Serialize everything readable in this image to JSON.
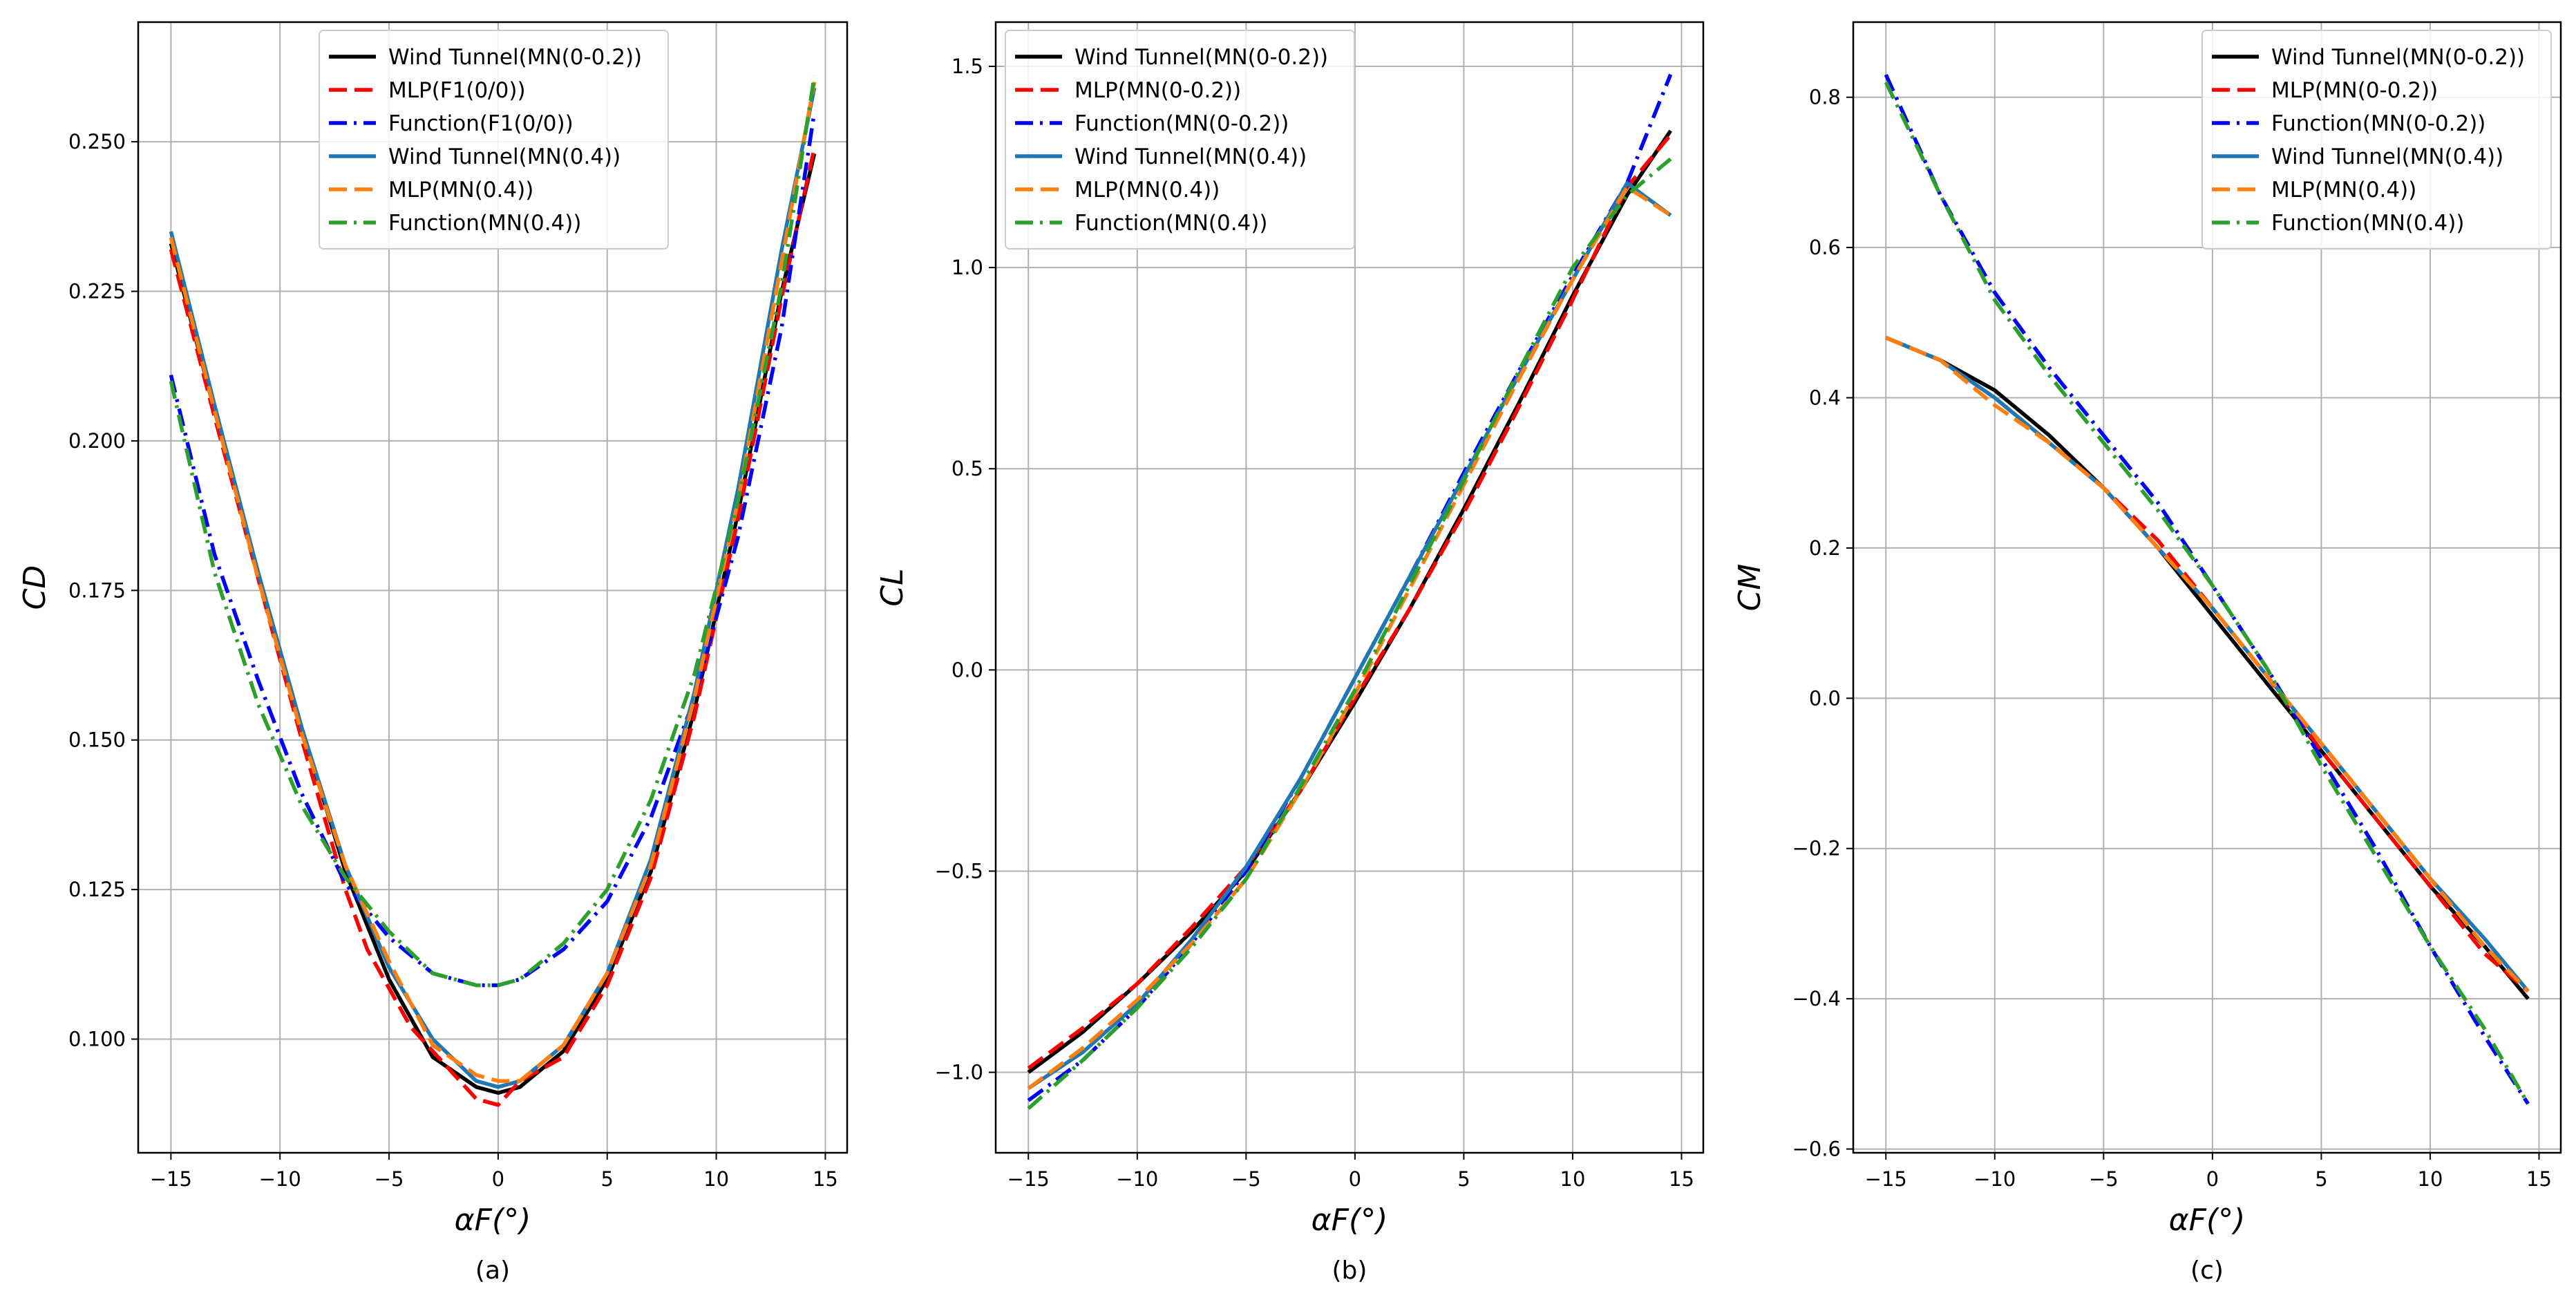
{
  "colors": {
    "Wind Tunnel(MN(0-0.2))": "#000000",
    "red_mlp": "#ff0000",
    "blue_function": "#0000ff",
    "Wind Tunnel(MN(0.4))": "#1f77b4",
    "orange_mlp": "#ff7f0e",
    "green_function": "#2ca02c"
  },
  "chart_data": [
    {
      "type": "line",
      "caption": "(a)",
      "xlabel": "αF(°)",
      "ylabel": "CD",
      "xlim": [
        -16.5,
        16
      ],
      "ylim": [
        0.081,
        0.27
      ],
      "xticks": [
        -15,
        -10,
        -5,
        0,
        5,
        10,
        15
      ],
      "yticks": [
        0.1,
        0.125,
        0.15,
        0.175,
        0.2,
        0.225,
        0.25
      ],
      "ytick_labels": [
        "0.100",
        "0.125",
        "0.150",
        "0.175",
        "0.200",
        "0.225",
        "0.250"
      ],
      "legend": "top-center",
      "series": [
        {
          "name": "Wind Tunnel(MN(0-0.2))",
          "style": "solid",
          "color": "#000000",
          "x": [
            -15,
            -13,
            -11,
            -9,
            -7,
            -5,
            -3,
            -1,
            0,
            1,
            3,
            5,
            7,
            9,
            11,
            13,
            14.5
          ],
          "y": [
            0.233,
            0.205,
            0.178,
            0.152,
            0.128,
            0.11,
            0.097,
            0.092,
            0.091,
            0.092,
            0.098,
            0.11,
            0.128,
            0.155,
            0.188,
            0.225,
            0.248
          ]
        },
        {
          "name": "MLP(F1(0/0))",
          "style": "dashed",
          "color": "#ff0000",
          "x": [
            -15,
            -13,
            -11,
            -9,
            -7,
            -6,
            -4,
            -2,
            -1,
            0,
            1,
            3,
            5,
            7,
            9,
            11,
            13,
            14.5
          ],
          "y": [
            0.232,
            0.204,
            0.177,
            0.15,
            0.125,
            0.115,
            0.102,
            0.094,
            0.09,
            0.089,
            0.093,
            0.097,
            0.109,
            0.127,
            0.154,
            0.187,
            0.224,
            0.249
          ]
        },
        {
          "name": "Function(F1(0/0))",
          "style": "dashdot",
          "color": "#0000ff",
          "x": [
            -15,
            -13,
            -11,
            -9,
            -7,
            -5,
            -3,
            -1,
            0,
            1,
            3,
            5,
            7,
            9,
            11,
            13,
            14.5
          ],
          "y": [
            0.211,
            0.181,
            0.16,
            0.141,
            0.126,
            0.117,
            0.111,
            0.109,
            0.109,
            0.11,
            0.115,
            0.123,
            0.137,
            0.157,
            0.184,
            0.219,
            0.255
          ]
        },
        {
          "name": "Wind Tunnel(MN(0.4))",
          "style": "solid",
          "color": "#1f77b4",
          "x": [
            -15,
            -13,
            -11,
            -9,
            -7,
            -5,
            -3,
            -1,
            0,
            1,
            3,
            5,
            7,
            9,
            11,
            13,
            14.5
          ],
          "y": [
            0.235,
            0.206,
            0.178,
            0.152,
            0.129,
            0.112,
            0.1,
            0.093,
            0.092,
            0.093,
            0.099,
            0.111,
            0.13,
            0.158,
            0.192,
            0.232,
            0.259
          ]
        },
        {
          "name": "MLP(MN(0.4))",
          "style": "dashed",
          "color": "#ff7f0e",
          "x": [
            -15,
            -13,
            -11,
            -9,
            -7,
            -5,
            -3,
            -1,
            0,
            1,
            3,
            5,
            7,
            9,
            11,
            13,
            14.5
          ],
          "y": [
            0.234,
            0.205,
            0.177,
            0.151,
            0.129,
            0.113,
            0.099,
            0.094,
            0.093,
            0.093,
            0.099,
            0.111,
            0.129,
            0.157,
            0.19,
            0.23,
            0.26
          ]
        },
        {
          "name": "Function(MN(0.4))",
          "style": "dashdot",
          "color": "#2ca02c",
          "x": [
            -15,
            -13,
            -11,
            -9,
            -7,
            -5,
            -3,
            -1,
            0,
            1,
            3,
            5,
            7,
            9,
            11,
            13,
            14.5
          ],
          "y": [
            0.21,
            0.178,
            0.156,
            0.139,
            0.127,
            0.118,
            0.111,
            0.109,
            0.109,
            0.11,
            0.116,
            0.125,
            0.14,
            0.161,
            0.19,
            0.226,
            0.261
          ]
        }
      ]
    },
    {
      "type": "line",
      "caption": "(b)",
      "xlabel": "αF(°)",
      "ylabel": "CL",
      "xlim": [
        -16.5,
        16
      ],
      "ylim": [
        -1.2,
        1.61
      ],
      "xticks": [
        -15,
        -10,
        -5,
        0,
        5,
        10,
        15
      ],
      "yticks": [
        -1.0,
        -0.5,
        0.0,
        0.5,
        1.0,
        1.5
      ],
      "ytick_labels": [
        "−1.0",
        "−0.5",
        "0.0",
        "0.5",
        "1.0",
        "1.5"
      ],
      "legend": "top-left",
      "series": [
        {
          "name": "Wind Tunnel(MN(0-0.2))",
          "style": "solid",
          "color": "#000000",
          "x": [
            -15,
            -12.5,
            -10,
            -7.5,
            -5,
            -2.5,
            0,
            2.5,
            5,
            7.5,
            10,
            12.5,
            14.5
          ],
          "y": [
            -1.0,
            -0.9,
            -0.78,
            -0.65,
            -0.5,
            -0.3,
            -0.08,
            0.15,
            0.4,
            0.66,
            0.93,
            1.18,
            1.34
          ]
        },
        {
          "name": "MLP(MN(0-0.2))",
          "style": "dashed",
          "color": "#ff0000",
          "x": [
            -15,
            -12.5,
            -10,
            -7.5,
            -5,
            -2.5,
            0,
            2.5,
            5,
            7.5,
            10,
            12.5,
            14.5
          ],
          "y": [
            -0.99,
            -0.89,
            -0.78,
            -0.64,
            -0.49,
            -0.3,
            -0.07,
            0.15,
            0.39,
            0.65,
            0.92,
            1.2,
            1.33
          ]
        },
        {
          "name": "Function(MN(0-0.2))",
          "style": "dashdot",
          "color": "#0000ff",
          "x": [
            -15,
            -12.5,
            -10,
            -7.5,
            -5,
            -2.5,
            0,
            2.5,
            5,
            7.5,
            10,
            12.5,
            14.5
          ],
          "y": [
            -1.07,
            -0.97,
            -0.84,
            -0.68,
            -0.5,
            -0.27,
            -0.02,
            0.23,
            0.49,
            0.74,
            0.98,
            1.21,
            1.48
          ]
        },
        {
          "name": "Wind Tunnel(MN(0.4))",
          "style": "solid",
          "color": "#1f77b4",
          "x": [
            -15,
            -12.5,
            -10,
            -7.5,
            -5,
            -2.5,
            0,
            2.5,
            5,
            7.5,
            10,
            12.5,
            14.5
          ],
          "y": [
            -1.04,
            -0.95,
            -0.83,
            -0.67,
            -0.49,
            -0.27,
            -0.02,
            0.23,
            0.48,
            0.73,
            0.97,
            1.21,
            1.13
          ]
        },
        {
          "name": "MLP(MN(0.4))",
          "style": "dashed",
          "color": "#ff7f0e",
          "x": [
            -15,
            -12.5,
            -10,
            -7.5,
            -5,
            -2.5,
            0,
            2.5,
            5,
            7.5,
            10,
            12.5,
            14.5
          ],
          "y": [
            -1.04,
            -0.94,
            -0.82,
            -0.68,
            -0.52,
            -0.3,
            -0.06,
            0.2,
            0.46,
            0.72,
            0.97,
            1.2,
            1.13
          ]
        },
        {
          "name": "Function(MN(0.4))",
          "style": "dashdot",
          "color": "#2ca02c",
          "x": [
            -15,
            -12.5,
            -10,
            -7.5,
            -5,
            -2.5,
            0,
            2.5,
            5,
            7.5,
            10,
            12.5,
            14.5
          ],
          "y": [
            -1.09,
            -0.97,
            -0.84,
            -0.69,
            -0.52,
            -0.29,
            -0.05,
            0.21,
            0.47,
            0.74,
            1.0,
            1.18,
            1.27
          ]
        }
      ]
    },
    {
      "type": "line",
      "caption": "(c)",
      "xlabel": "αF(°)",
      "ylabel": "CM",
      "xlim": [
        -16.5,
        16
      ],
      "ylim": [
        -0.605,
        0.9
      ],
      "xticks": [
        -15,
        -10,
        -5,
        0,
        5,
        10,
        15
      ],
      "yticks": [
        -0.6,
        -0.4,
        -0.2,
        0.0,
        0.2,
        0.4,
        0.6,
        0.8
      ],
      "ytick_labels": [
        "−0.6",
        "−0.4",
        "−0.2",
        "0.0",
        "0.2",
        "0.4",
        "0.6",
        "0.8"
      ],
      "legend": "top-right",
      "series": [
        {
          "name": "Wind Tunnel(MN(0-0.2))",
          "style": "solid",
          "color": "#000000",
          "x": [
            -15,
            -12.5,
            -10,
            -7.5,
            -5,
            -2.5,
            0,
            2.5,
            5,
            7.5,
            10,
            12.5,
            14.5
          ],
          "y": [
            0.48,
            0.45,
            0.41,
            0.35,
            0.28,
            0.2,
            0.11,
            0.02,
            -0.07,
            -0.16,
            -0.25,
            -0.33,
            -0.4
          ]
        },
        {
          "name": "MLP(MN(0-0.2))",
          "style": "dashed",
          "color": "#ff0000",
          "x": [
            -15,
            -12.5,
            -10,
            -7.5,
            -5,
            -2.5,
            0,
            2.5,
            5,
            7.5,
            10,
            12.5,
            14.5
          ],
          "y": [
            0.48,
            0.45,
            0.4,
            0.34,
            0.28,
            0.21,
            0.12,
            0.03,
            -0.07,
            -0.16,
            -0.25,
            -0.34,
            -0.39
          ]
        },
        {
          "name": "Function(MN(0-0.2))",
          "style": "dashdot",
          "color": "#0000ff",
          "x": [
            -15,
            -12.5,
            -10,
            -7.5,
            -5,
            -2.5,
            0,
            2.5,
            5,
            7.5,
            10,
            12.5,
            14.5
          ],
          "y": [
            0.83,
            0.67,
            0.54,
            0.44,
            0.35,
            0.26,
            0.15,
            0.04,
            -0.08,
            -0.2,
            -0.33,
            -0.45,
            -0.54
          ]
        },
        {
          "name": "Wind Tunnel(MN(0.4))",
          "style": "solid",
          "color": "#1f77b4",
          "x": [
            -15,
            -12.5,
            -10,
            -7.5,
            -5,
            -2.5,
            0,
            2.5,
            5,
            7.5,
            10,
            12.5,
            14.5
          ],
          "y": [
            0.48,
            0.45,
            0.4,
            0.34,
            0.28,
            0.2,
            0.12,
            0.03,
            -0.06,
            -0.15,
            -0.24,
            -0.32,
            -0.39
          ]
        },
        {
          "name": "MLP(MN(0.4))",
          "style": "dashed",
          "color": "#ff7f0e",
          "x": [
            -15,
            -12.5,
            -10,
            -7.5,
            -5,
            -2.5,
            0,
            2.5,
            5,
            7.5,
            10,
            12.5,
            14.5
          ],
          "y": [
            0.48,
            0.45,
            0.39,
            0.34,
            0.28,
            0.2,
            0.12,
            0.03,
            -0.06,
            -0.15,
            -0.24,
            -0.33,
            -0.39
          ]
        },
        {
          "name": "Function(MN(0.4))",
          "style": "dashdot",
          "color": "#2ca02c",
          "x": [
            -15,
            -12.5,
            -10,
            -7.5,
            -5,
            -2.5,
            0,
            2.5,
            5,
            7.5,
            10,
            12.5,
            14.5
          ],
          "y": [
            0.82,
            0.67,
            0.53,
            0.43,
            0.34,
            0.25,
            0.15,
            0.04,
            -0.09,
            -0.21,
            -0.33,
            -0.44,
            -0.54
          ]
        }
      ]
    }
  ]
}
